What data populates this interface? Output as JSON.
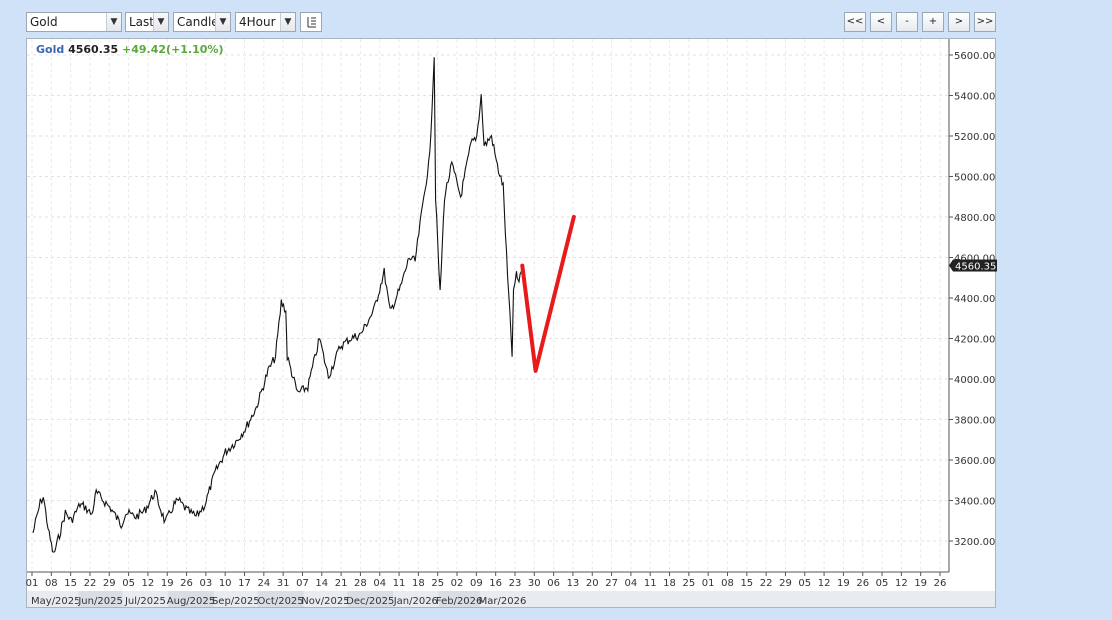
{
  "toolbar": {
    "symbol": "Gold",
    "price_type": "Last",
    "chart_style": "Candle",
    "interval": "4Hour"
  },
  "nav": {
    "first": "<<",
    "prev": "<",
    "zoom_out": "-",
    "zoom_in": "+",
    "next": ">",
    "last": ">>"
  },
  "header": {
    "symbol": "Gold",
    "price": "4560.35",
    "change": "+49.42(+1.10%)"
  },
  "icons": {
    "settings": "bar-chart-settings-icon"
  },
  "colors": {
    "symbol_label": "#3a66b0",
    "change_positive": "#5aa83a",
    "price_line": "#111111",
    "annotation": "#e81a1a",
    "last_price_tag": "#222222"
  },
  "chart_data": {
    "type": "line",
    "title": "",
    "xlabel": "",
    "ylabel": "",
    "ylim": [
      3080,
      5660
    ],
    "y_ticks": [
      "3200.00",
      "3400.00",
      "3600.00",
      "3800.00",
      "4000.00",
      "4200.00",
      "4400.00",
      "4600.00",
      "4800.00",
      "5000.00",
      "5200.00",
      "5400.00",
      "5600.00"
    ],
    "last_price_label": "4560.35",
    "x_day_ticks": [
      "01",
      "08",
      "15",
      "22",
      "29",
      "05",
      "12",
      "19",
      "26",
      "03",
      "10",
      "17",
      "24",
      "31",
      "07",
      "14",
      "21",
      "28",
      "04",
      "11",
      "18",
      "25",
      "02",
      "09",
      "16",
      "23",
      "30",
      "06",
      "13",
      "20",
      "27",
      "04",
      "11",
      "18",
      "25",
      "01",
      "08",
      "15",
      "22",
      "29",
      "05",
      "12",
      "19",
      "26",
      "05",
      "12",
      "19",
      "26"
    ],
    "x_month_labels": [
      "May/2025",
      "Jun/2025",
      "Jul/2025",
      "Aug/2025",
      "Sep/2025",
      "Oct/2025",
      "Nov/2025",
      "Dec/2025",
      "Jan/2026",
      "Feb/2026",
      "Mar/2026"
    ],
    "series": [
      {
        "values": [
          {
            "x": "2025-05-01",
            "y": 3240
          },
          {
            "x": "2025-05-06",
            "y": 3390
          },
          {
            "x": "2025-05-08",
            "y": 3420
          },
          {
            "x": "2025-05-12",
            "y": 3230
          },
          {
            "x": "2025-05-15",
            "y": 3130
          },
          {
            "x": "2025-05-19",
            "y": 3230
          },
          {
            "x": "2025-05-23",
            "y": 3340
          },
          {
            "x": "2025-05-27",
            "y": 3300
          },
          {
            "x": "2025-06-02",
            "y": 3380
          },
          {
            "x": "2025-06-05",
            "y": 3370
          },
          {
            "x": "2025-06-10",
            "y": 3330
          },
          {
            "x": "2025-06-13",
            "y": 3440
          },
          {
            "x": "2025-06-18",
            "y": 3400
          },
          {
            "x": "2025-06-23",
            "y": 3360
          },
          {
            "x": "2025-06-30",
            "y": 3280
          },
          {
            "x": "2025-07-03",
            "y": 3340
          },
          {
            "x": "2025-07-10",
            "y": 3320
          },
          {
            "x": "2025-07-16",
            "y": 3350
          },
          {
            "x": "2025-07-23",
            "y": 3440
          },
          {
            "x": "2025-07-30",
            "y": 3290
          },
          {
            "x": "2025-08-05",
            "y": 3380
          },
          {
            "x": "2025-08-08",
            "y": 3400
          },
          {
            "x": "2025-08-14",
            "y": 3350
          },
          {
            "x": "2025-08-20",
            "y": 3320
          },
          {
            "x": "2025-08-26",
            "y": 3380
          },
          {
            "x": "2025-09-02",
            "y": 3540
          },
          {
            "x": "2025-09-09",
            "y": 3640
          },
          {
            "x": "2025-09-16",
            "y": 3690
          },
          {
            "x": "2025-09-23",
            "y": 3760
          },
          {
            "x": "2025-09-30",
            "y": 3860
          },
          {
            "x": "2025-10-08",
            "y": 4040
          },
          {
            "x": "2025-10-13",
            "y": 4110
          },
          {
            "x": "2025-10-17",
            "y": 4380
          },
          {
            "x": "2025-10-20",
            "y": 4340
          },
          {
            "x": "2025-10-21",
            "y": 4110
          },
          {
            "x": "2025-10-28",
            "y": 3930
          },
          {
            "x": "2025-11-04",
            "y": 3960
          },
          {
            "x": "2025-11-12",
            "y": 4200
          },
          {
            "x": "2025-11-18",
            "y": 4010
          },
          {
            "x": "2025-11-26",
            "y": 4160
          },
          {
            "x": "2025-12-03",
            "y": 4200
          },
          {
            "x": "2025-12-10",
            "y": 4220
          },
          {
            "x": "2025-12-19",
            "y": 4340
          },
          {
            "x": "2025-12-26",
            "y": 4530
          },
          {
            "x": "2025-12-30",
            "y": 4330
          },
          {
            "x": "2026-01-06",
            "y": 4450
          },
          {
            "x": "2026-01-12",
            "y": 4600
          },
          {
            "x": "2026-01-16",
            "y": 4580
          },
          {
            "x": "2026-01-22",
            "y": 4900
          },
          {
            "x": "2026-01-26",
            "y": 5100
          },
          {
            "x": "2026-01-29",
            "y": 5600
          },
          {
            "x": "2026-01-30",
            "y": 4900
          },
          {
            "x": "2026-02-02",
            "y": 4420
          },
          {
            "x": "2026-02-05",
            "y": 4900
          },
          {
            "x": "2026-02-10",
            "y": 5060
          },
          {
            "x": "2026-02-16",
            "y": 4900
          },
          {
            "x": "2026-02-23",
            "y": 5160
          },
          {
            "x": "2026-02-27",
            "y": 5200
          },
          {
            "x": "2026-03-02",
            "y": 5400
          },
          {
            "x": "2026-03-04",
            "y": 5150
          },
          {
            "x": "2026-03-09",
            "y": 5200
          },
          {
            "x": "2026-03-13",
            "y": 5050
          },
          {
            "x": "2026-03-17",
            "y": 4950
          },
          {
            "x": "2026-03-20",
            "y": 4500
          },
          {
            "x": "2026-03-23",
            "y": 4120
          },
          {
            "x": "2026-03-24",
            "y": 4420
          },
          {
            "x": "2026-03-26",
            "y": 4530
          },
          {
            "x": "2026-03-27",
            "y": 4470
          },
          {
            "x": "2026-03-30",
            "y": 4560
          }
        ]
      }
    ],
    "annotation_path": [
      {
        "x": "2026-03-30",
        "y": 4560
      },
      {
        "x": "2026-04-08",
        "y": 4040
      },
      {
        "x": "2026-05-04",
        "y": 4800
      }
    ]
  }
}
